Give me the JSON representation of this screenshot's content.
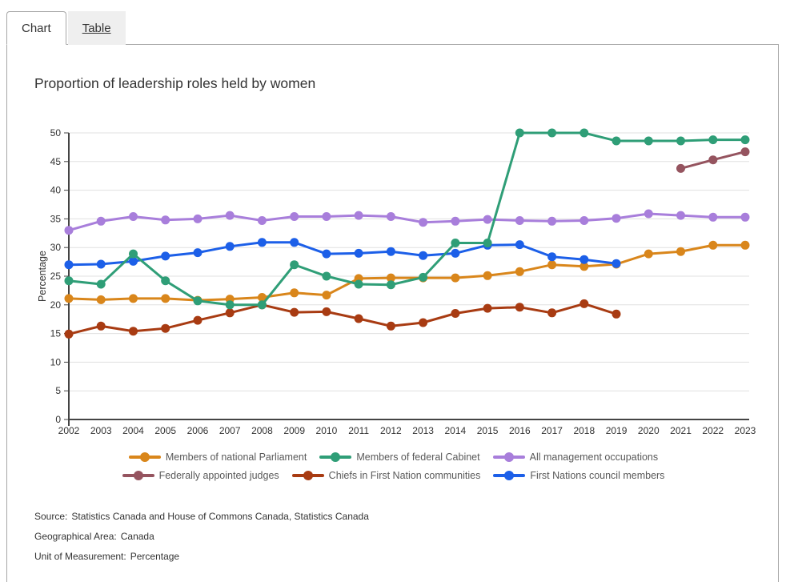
{
  "tabs": {
    "chart": "Chart",
    "table": "Table"
  },
  "chart_title": "Proportion of leadership roles held by women",
  "chart_data": {
    "type": "line",
    "title": "Proportion of leadership roles held by women",
    "xlabel": "",
    "ylabel": "Percentage",
    "ylim": [
      0,
      50
    ],
    "ytick_step": 5,
    "grid": true,
    "legend_position": "bottom",
    "years": [
      2002,
      2003,
      2004,
      2005,
      2006,
      2007,
      2008,
      2009,
      2010,
      2011,
      2012,
      2013,
      2014,
      2015,
      2016,
      2017,
      2018,
      2019,
      2020,
      2021,
      2022,
      2023
    ],
    "series": [
      {
        "name": "Members of national Parliament",
        "color": "#D9861B",
        "values": [
          21.1,
          20.9,
          21.1,
          21.1,
          20.8,
          21.0,
          21.3,
          22.1,
          21.7,
          24.6,
          24.7,
          24.7,
          24.7,
          25.1,
          25.8,
          27.0,
          26.7,
          27.1,
          28.9,
          29.3,
          30.4,
          30.4
        ]
      },
      {
        "name": "Members of federal Cabinet",
        "color": "#2F9E77",
        "values": [
          24.2,
          23.6,
          28.9,
          24.2,
          20.7,
          20.0,
          20.0,
          27.0,
          25.0,
          23.6,
          23.5,
          24.8,
          30.8,
          30.8,
          50.0,
          50.0,
          50.0,
          48.6,
          48.6,
          48.6,
          48.8,
          48.8
        ]
      },
      {
        "name": "All management occupations",
        "color": "#A87EDB",
        "values": [
          33.0,
          34.6,
          35.4,
          34.8,
          35.0,
          35.6,
          34.7,
          35.4,
          35.4,
          35.6,
          35.4,
          34.4,
          34.6,
          34.9,
          34.7,
          34.6,
          34.7,
          35.1,
          35.9,
          35.6,
          35.3,
          35.3
        ]
      },
      {
        "name": "Federally appointed judges",
        "color": "#95545F",
        "values": [
          null,
          null,
          null,
          null,
          null,
          null,
          null,
          null,
          null,
          null,
          null,
          null,
          null,
          null,
          null,
          null,
          null,
          null,
          null,
          43.8,
          45.3,
          46.7
        ]
      },
      {
        "name": "Chiefs in First Nation communities",
        "color": "#A83B12",
        "values": [
          14.9,
          16.3,
          15.4,
          15.9,
          17.3,
          18.6,
          20.0,
          18.7,
          18.8,
          17.6,
          16.3,
          16.9,
          18.5,
          19.4,
          19.6,
          18.6,
          20.2,
          18.4,
          null,
          null,
          null,
          null
        ]
      },
      {
        "name": "First Nations council members",
        "color": "#1C5FE8",
        "values": [
          27.0,
          27.1,
          27.6,
          28.5,
          29.1,
          30.2,
          30.9,
          30.9,
          28.9,
          29.0,
          29.3,
          28.6,
          29.0,
          30.4,
          30.5,
          28.4,
          27.9,
          27.2,
          null,
          null,
          null,
          null
        ]
      }
    ],
    "legend_rows": [
      [
        0,
        1,
        2
      ],
      [
        3,
        4,
        5
      ]
    ],
    "draw_order": [
      3,
      4,
      0,
      2,
      5,
      1
    ]
  },
  "notes": [
    {
      "label": "Source:",
      "value": "Statistics Canada and House of Commons Canada, Statistics Canada"
    },
    {
      "label": "Geographical Area:",
      "value": "Canada"
    },
    {
      "label": "Unit of Measurement:",
      "value": "Percentage"
    }
  ],
  "colors": {
    "axis": "#444444",
    "grid": "#e0e0e0",
    "tick_text": "#333333",
    "legend_text": "#595959",
    "panel_border": "#a6a6a6",
    "inactive_tab_bg": "#efefef"
  }
}
